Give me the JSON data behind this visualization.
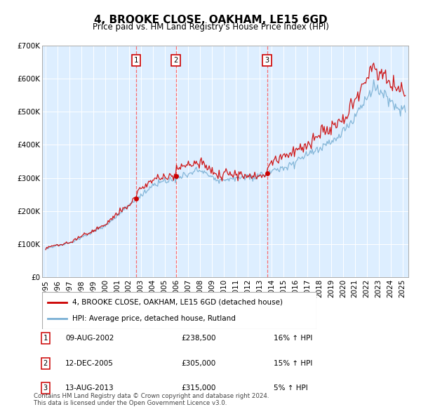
{
  "title": "4, BROOKE CLOSE, OAKHAM, LE15 6GD",
  "subtitle": "Price paid vs. HM Land Registry's House Price Index (HPI)",
  "legend_property": "4, BROOKE CLOSE, OAKHAM, LE15 6GD (detached house)",
  "legend_hpi": "HPI: Average price, detached house, Rutland",
  "footer": "Contains HM Land Registry data © Crown copyright and database right 2024.\nThis data is licensed under the Open Government Licence v3.0.",
  "transactions": [
    {
      "num": 1,
      "date": "09-AUG-2002",
      "price": 238500,
      "pct": "16%",
      "direction": "↑"
    },
    {
      "num": 2,
      "date": "12-DEC-2005",
      "price": 305000,
      "pct": "15%",
      "direction": "↑"
    },
    {
      "num": 3,
      "date": "13-AUG-2013",
      "price": 315000,
      "pct": "5%",
      "direction": "↑"
    }
  ],
  "transaction_dates_decimal": [
    2002.6,
    2005.95,
    2013.62
  ],
  "transaction_prices": [
    238500,
    305000,
    315000
  ],
  "color_property": "#cc0000",
  "color_hpi": "#7ab0d4",
  "color_vline": "#ff5555",
  "background_chart": "#ddeeff",
  "ylim": [
    0,
    700000
  ],
  "xlim_start": 1994.7,
  "xlim_end": 2025.5
}
